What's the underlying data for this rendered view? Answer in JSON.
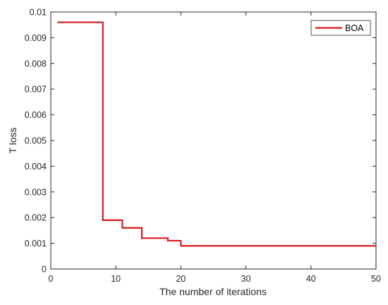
{
  "chart_data": {
    "type": "line",
    "title": "",
    "xlabel": "The number of iterations",
    "ylabel": "T loss",
    "xlim": [
      0,
      50
    ],
    "ylim": [
      0,
      0.01
    ],
    "xticks": [
      "0",
      "10",
      "20",
      "30",
      "40",
      "50"
    ],
    "yticks": [
      "0",
      "0.001",
      "0.002",
      "0.003",
      "0.004",
      "0.005",
      "0.006",
      "0.007",
      "0.008",
      "0.009",
      "0.01"
    ],
    "grid": false,
    "legend_position": "top-right",
    "series": [
      {
        "name": "BOA",
        "color": "#d7191c",
        "step": true,
        "x": [
          1,
          7,
          8,
          10,
          11,
          13,
          14,
          17,
          18,
          19,
          20,
          50
        ],
        "y": [
          0.0096,
          0.0096,
          0.0019,
          0.0019,
          0.0016,
          0.0016,
          0.0012,
          0.0012,
          0.0011,
          0.0011,
          0.0009,
          0.0009
        ]
      }
    ]
  }
}
